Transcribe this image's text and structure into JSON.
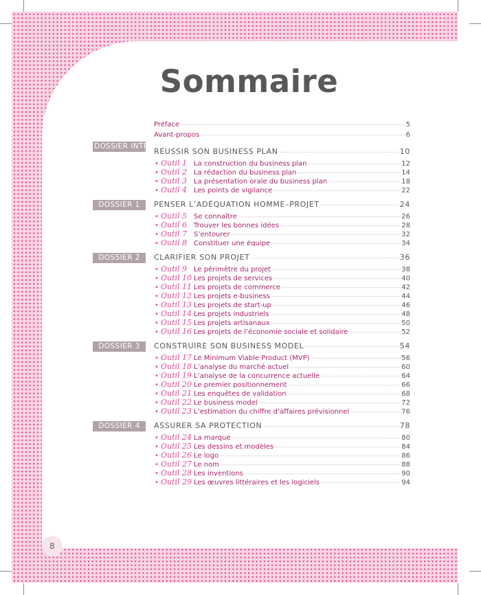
{
  "title": "Sommaire",
  "page_number": "8",
  "colors": {
    "pattern_bg": "#f8d4e4",
    "pattern_dot": "#e2327f",
    "item_text": "#a8226a",
    "outil_label": "#e04a96",
    "badge_bg": "#b3a1a9",
    "heading": "#555555"
  },
  "front": [
    {
      "label": "Préface",
      "page": "5"
    },
    {
      "label": "Avant-propos",
      "page": "6"
    }
  ],
  "sections": [
    {
      "badge": "DOSSIER INTRODUCTIF",
      "title": "RÉUSSIR SON BUSINESS PLAN",
      "page": "10",
      "items": [
        {
          "outil": "Outil 1",
          "label": "La construction du business plan",
          "page": "12"
        },
        {
          "outil": "Outil 2",
          "label": "La rédaction du business plan",
          "page": "14"
        },
        {
          "outil": "Outil 3",
          "label": "La présentation orale du business plan",
          "page": "18"
        },
        {
          "outil": "Outil 4",
          "label": "Les points de vigilance",
          "page": "22"
        }
      ]
    },
    {
      "badge": "DOSSIER 1",
      "title": "PENSER L’ADÉQUATION HOMME–PROJET",
      "page": "24",
      "items": [
        {
          "outil": "Outil 5",
          "label": "Se connaître",
          "page": "26"
        },
        {
          "outil": "Outil 6",
          "label": "Trouver les bonnes idées",
          "page": "28"
        },
        {
          "outil": "Outil 7",
          "label": "S’entourer",
          "page": "32"
        },
        {
          "outil": "Outil 8",
          "label": "Constituer une équipe",
          "page": "34"
        }
      ]
    },
    {
      "badge": "DOSSIER 2",
      "title": "CLARIFIER SON PROJET",
      "page": "36",
      "items": [
        {
          "outil": "Outil 9",
          "label": "Le périmètre du projet",
          "page": "38"
        },
        {
          "outil": "Outil 10",
          "label": "Les projets de services",
          "page": "40"
        },
        {
          "outil": "Outil 11",
          "label": "Les projets de commerce",
          "page": "42"
        },
        {
          "outil": "Outil 12",
          "label": "Les projets e-business",
          "page": "44"
        },
        {
          "outil": "Outil 13",
          "label": "Les projets de start-up",
          "page": "46"
        },
        {
          "outil": "Outil 14",
          "label": "Les projets industriels",
          "page": "48"
        },
        {
          "outil": "Outil 15",
          "label": "Les projets artisanaux",
          "page": "50"
        },
        {
          "outil": "Outil 16",
          "label": "Les projets de l’économie sociale et solidaire",
          "page": "52"
        }
      ]
    },
    {
      "badge": "DOSSIER 3",
      "title": "CONSTRUIRE SON BUSINESS MODEL",
      "page": "54",
      "items": [
        {
          "outil": "Outil 17",
          "label": "Le Minimum Viable Product (MVP)",
          "page": "56"
        },
        {
          "outil": "Outil 18",
          "label": "L’analyse du marché actuel",
          "page": "60"
        },
        {
          "outil": "Outil 19",
          "label": "L’analyse de la concurrence actuelle",
          "page": "64"
        },
        {
          "outil": "Outil 20",
          "label": "Le premier positionnement",
          "page": "66"
        },
        {
          "outil": "Outil 21",
          "label": "Les enquêtes de validation",
          "page": "68"
        },
        {
          "outil": "Outil 22",
          "label": "Le business model",
          "page": "72"
        },
        {
          "outil": "Outil 23",
          "label": "L’estimation du chiffre d’affaires prévisionnel",
          "page": "76"
        }
      ]
    },
    {
      "badge": "DOSSIER 4",
      "title": "ASSURER SA PROTECTION",
      "page": "78",
      "items": [
        {
          "outil": "Outil 24",
          "label": "La marque",
          "page": "80"
        },
        {
          "outil": "Outil 25",
          "label": "Les dessins et modèles",
          "page": "84"
        },
        {
          "outil": "Outil 26",
          "label": "Le logo",
          "page": "86"
        },
        {
          "outil": "Outil 27",
          "label": "Le nom",
          "page": "88"
        },
        {
          "outil": "Outil 28",
          "label": "Les inventions",
          "page": "90"
        },
        {
          "outil": "Outil 29",
          "label": "Les œuvres littéraires et les logiciels",
          "page": "94"
        }
      ]
    }
  ]
}
